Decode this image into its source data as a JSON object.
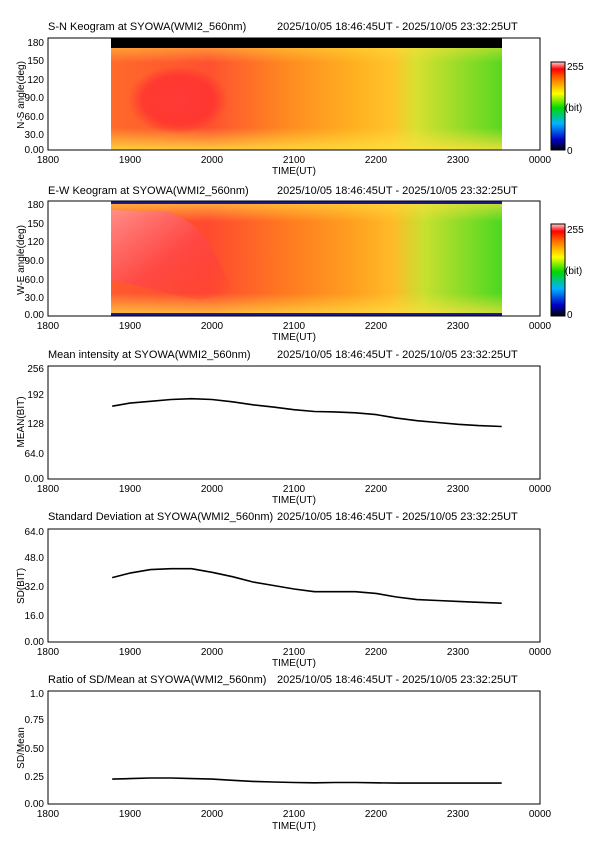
{
  "panels": {
    "sn": {
      "title": "S-N Keogram at SYOWA(WMI2_560nm)",
      "time_range": "2025/10/05 18:46:45UT - 2025/10/05 23:32:25UT",
      "ylabel": "N-S angle(deg)",
      "xlabel": "TIME(UT)",
      "colorbar": {
        "max_label": "255",
        "unit_label": "(bit)",
        "min_label": "0"
      }
    },
    "ew": {
      "title": "E-W Keogram at SYOWA(WMI2_560nm)",
      "time_range": "2025/10/05 18:46:45UT - 2025/10/05 23:32:25UT",
      "ylabel": "W-E angle(deg)",
      "xlabel": "TIME(UT)",
      "colorbar": {
        "max_label": "255",
        "unit_label": "(bit)",
        "min_label": "0"
      }
    },
    "mean": {
      "title": "Mean intensity at SYOWA(WMI2_560nm)",
      "time_range": "2025/10/05 18:46:45UT - 2025/10/05 23:32:25UT",
      "ylabel": "MEAN(BIT)",
      "xlabel": "TIME(UT)"
    },
    "sd": {
      "title": "Standard Deviation at SYOWA(WMI2_560nm)",
      "time_range": "2025/10/05 18:46:45UT - 2025/10/05 23:32:25UT",
      "ylabel": "SD(BIT)",
      "xlabel": "TIME(UT)"
    },
    "ratio": {
      "title": "Ratio of SD/Mean at SYOWA(WMI2_560nm)",
      "time_range": "2025/10/05 18:46:45UT - 2025/10/05 23:32:25UT",
      "ylabel": "SD/Mean",
      "xlabel": "TIME(UT)"
    }
  },
  "chart_data": [
    {
      "type": "heatmap",
      "title": "S-N Keogram at SYOWA(WMI2_560nm)",
      "xlabel": "TIME(UT)",
      "ylabel": "N-S angle(deg)",
      "x_ticks": [
        "1800",
        "1900",
        "2000",
        "2100",
        "2200",
        "2300",
        "0000"
      ],
      "y_ticks": [
        "0.00",
        "30.0",
        "60.0",
        "90.0",
        "120",
        "150",
        "180"
      ],
      "ylim": [
        0,
        180
      ],
      "colorbar": {
        "min": 0,
        "max": 255,
        "unit": "(bit)"
      },
      "data_start": "18:46:45",
      "data_end": "23:32:25",
      "colors": {
        "no_data": "#000000",
        "max": "#ff3535",
        "high": "#ff7a1a",
        "mid": "#ffd21e",
        "low": "#8be01e",
        "base": "#3fdc20"
      }
    },
    {
      "type": "heatmap",
      "title": "E-W Keogram at SYOWA(WMI2_560nm)",
      "xlabel": "TIME(UT)",
      "ylabel": "W-E angle(deg)",
      "x_ticks": [
        "1800",
        "1900",
        "2000",
        "2100",
        "2200",
        "2300",
        "0000"
      ],
      "y_ticks": [
        "0.00",
        "30.0",
        "60.0",
        "90.0",
        "120",
        "150",
        "180"
      ],
      "ylim": [
        0,
        180
      ],
      "colorbar": {
        "min": 0,
        "max": 255,
        "unit": "(bit)"
      },
      "data_start": "18:46:45",
      "data_end": "23:32:25"
    },
    {
      "type": "line",
      "title": "Mean intensity at SYOWA(WMI2_560nm)",
      "xlabel": "TIME(UT)",
      "ylabel": "MEAN(BIT)",
      "x_ticks": [
        "1800",
        "1900",
        "2000",
        "2100",
        "2200",
        "2300",
        "0000"
      ],
      "y_ticks": [
        "0.00",
        "64.0",
        "128",
        "192",
        "256"
      ],
      "ylim": [
        0,
        256
      ],
      "x": [
        "18:47",
        "19:00",
        "19:15",
        "19:30",
        "19:45",
        "20:00",
        "20:15",
        "20:30",
        "20:45",
        "21:00",
        "21:15",
        "21:30",
        "21:45",
        "22:00",
        "22:15",
        "22:30",
        "22:45",
        "23:00",
        "23:15",
        "23:32"
      ],
      "values": [
        165,
        172,
        176,
        180,
        182,
        180,
        175,
        168,
        163,
        157,
        153,
        152,
        150,
        146,
        138,
        132,
        128,
        124,
        121,
        119
      ]
    },
    {
      "type": "line",
      "title": "Standard Deviation at SYOWA(WMI2_560nm)",
      "xlabel": "TIME(UT)",
      "ylabel": "SD(BIT)",
      "x_ticks": [
        "1800",
        "1900",
        "2000",
        "2100",
        "2200",
        "2300",
        "0000"
      ],
      "y_ticks": [
        "0.00",
        "16.0",
        "32.0",
        "48.0",
        "64.0"
      ],
      "ylim": [
        0,
        64
      ],
      "x": [
        "18:47",
        "19:00",
        "19:15",
        "19:30",
        "19:45",
        "20:00",
        "20:15",
        "20:30",
        "20:45",
        "21:00",
        "21:15",
        "21:30",
        "21:45",
        "22:00",
        "22:15",
        "22:30",
        "22:45",
        "23:00",
        "23:15",
        "23:32"
      ],
      "values": [
        36.5,
        39.0,
        41.0,
        41.5,
        41.5,
        39.5,
        37.0,
        34.0,
        32.0,
        30.0,
        28.5,
        28.5,
        28.5,
        27.5,
        25.5,
        24.0,
        23.5,
        23.0,
        22.5,
        22.0
      ]
    },
    {
      "type": "line",
      "title": "Ratio of SD/Mean at SYOWA(WMI2_560nm)",
      "xlabel": "TIME(UT)",
      "ylabel": "SD/Mean",
      "x_ticks": [
        "1800",
        "1900",
        "2000",
        "2100",
        "2200",
        "2300",
        "0000"
      ],
      "y_ticks": [
        "0.00",
        "0.25",
        "0.50",
        "0.75",
        "1.0"
      ],
      "ylim": [
        0,
        1
      ],
      "x": [
        "18:47",
        "19:00",
        "19:15",
        "19:30",
        "19:45",
        "20:00",
        "20:15",
        "20:30",
        "20:45",
        "21:00",
        "21:15",
        "21:30",
        "21:45",
        "22:00",
        "22:15",
        "22:30",
        "22:45",
        "23:00",
        "23:15",
        "23:32"
      ],
      "values": [
        0.22,
        0.225,
        0.23,
        0.23,
        0.225,
        0.22,
        0.21,
        0.2,
        0.195,
        0.19,
        0.188,
        0.19,
        0.19,
        0.188,
        0.185,
        0.185,
        0.185,
        0.185,
        0.185,
        0.185
      ]
    }
  ]
}
